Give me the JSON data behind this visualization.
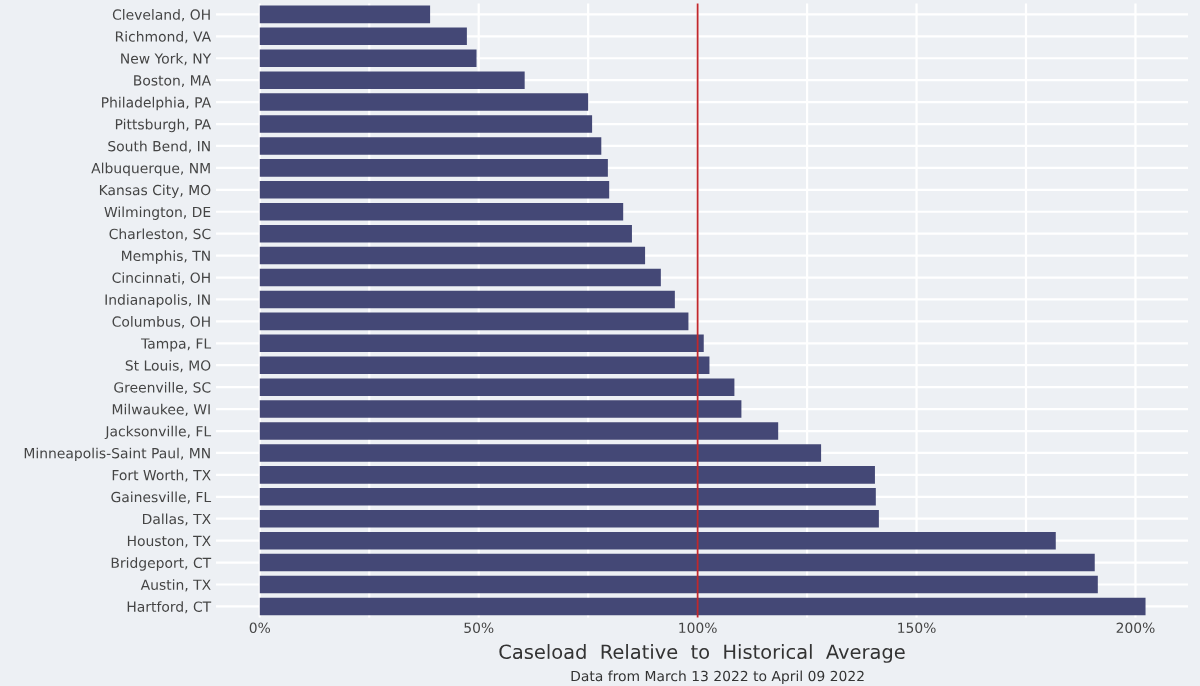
{
  "chart_data": {
    "type": "bar",
    "orientation": "horizontal",
    "categories": [
      "Cleveland, OH",
      "Richmond, VA",
      "New York, NY",
      "Boston, MA",
      "Philadelphia, PA",
      "Pittsburgh, PA",
      "South Bend, IN",
      "Albuquerque, NM",
      "Kansas City, MO",
      "Wilmington, DE",
      "Charleston, SC",
      "Memphis, TN",
      "Cincinnati, OH",
      "Indianapolis, IN",
      "Columbus, OH",
      "Tampa, FL",
      "St Louis, MO",
      "Greenville, SC",
      "Milwaukee, WI",
      "Jacksonville, FL",
      "Minneapolis-Saint Paul, MN",
      "Fort Worth, TX",
      "Gainesville, FL",
      "Dallas, TX",
      "Houston, TX",
      "Bridgeport, CT",
      "Austin, TX",
      "Hartford, CT"
    ],
    "values": [
      38.9,
      47.3,
      49.5,
      60.5,
      75,
      75.9,
      78,
      79.5,
      79.8,
      83,
      85,
      88,
      91.6,
      94.8,
      97.9,
      101.4,
      102.7,
      108.4,
      110,
      118.4,
      128.2,
      140.5,
      140.7,
      141.4,
      181.8,
      190.7,
      191.4,
      202.3
    ],
    "color": "#444876",
    "xlim": [
      -10,
      212
    ],
    "xticks": [
      {
        "value": 0,
        "label": "0%"
      },
      {
        "value": 25,
        "label": null
      },
      {
        "value": 50,
        "label": "50%"
      },
      {
        "value": 75,
        "label": null
      },
      {
        "value": 100,
        "label": "100%"
      },
      {
        "value": 125,
        "label": null
      },
      {
        "value": 150,
        "label": "150%"
      },
      {
        "value": 175,
        "label": null
      },
      {
        "value": 200,
        "label": "200%"
      }
    ],
    "xlabel": "Caseload  Relative  to  Historical  Average",
    "annotations": [
      "Data from March 13 2022 to April 09 2022"
    ],
    "ref_lines": [
      {
        "axis": "x",
        "value": 100,
        "label": null,
        "color": "#c0282d"
      }
    ],
    "grid": true
  }
}
